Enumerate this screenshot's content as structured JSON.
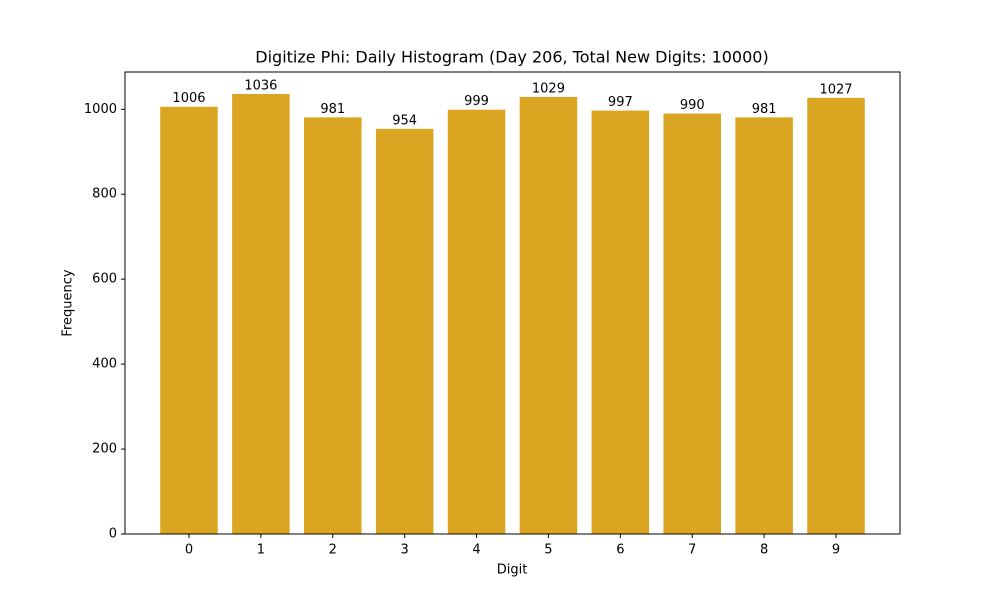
{
  "chart_data": {
    "type": "bar",
    "title": "Digitize Phi: Daily Histogram (Day 206, Total New Digits: 10000)",
    "x_label": "Digit",
    "y_label": "Frequency",
    "categories": [
      "0",
      "1",
      "2",
      "3",
      "4",
      "5",
      "6",
      "7",
      "8",
      "9"
    ],
    "values": [
      1006,
      1036,
      981,
      954,
      999,
      1029,
      997,
      990,
      981,
      1027
    ],
    "color": "#daa520",
    "ylim": [
      0,
      1087.8
    ],
    "yticks": [
      0,
      200,
      400,
      600,
      800,
      1000
    ],
    "grid": false
  }
}
